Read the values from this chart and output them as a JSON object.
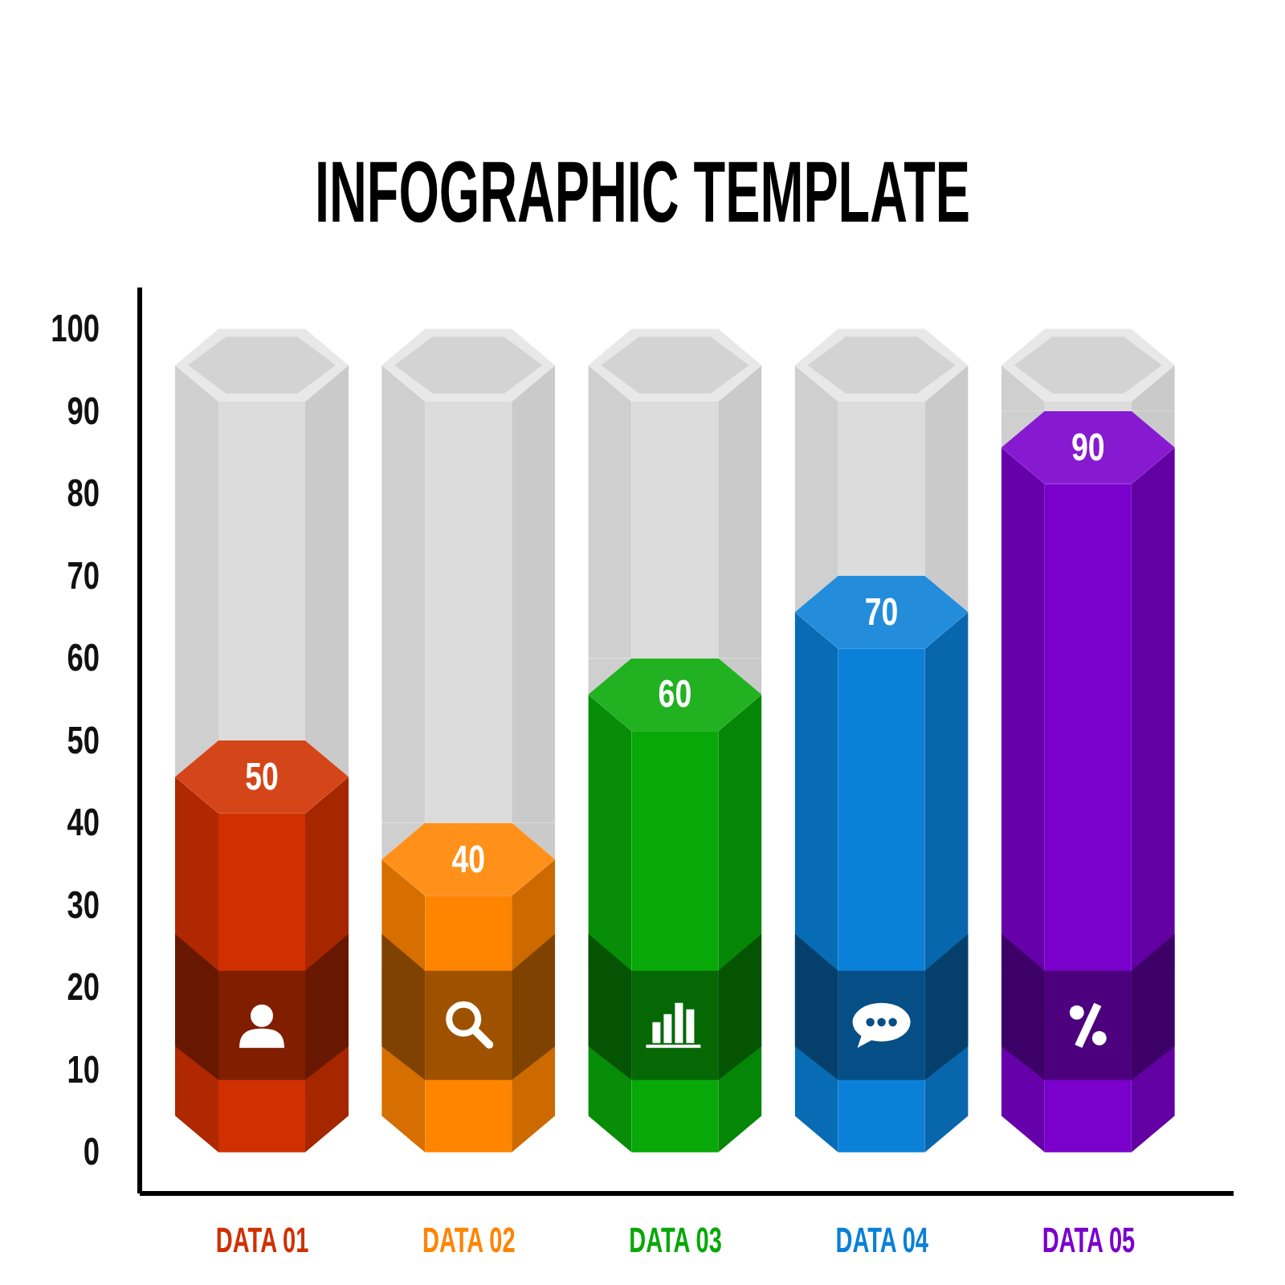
{
  "chart_data": {
    "type": "bar",
    "title": "INFOGRAPHIC TEMPLATE",
    "categories": [
      "DATA 01",
      "DATA 02",
      "DATA 03",
      "DATA 04",
      "DATA 05"
    ],
    "stacked": true,
    "ylim": [
      -5,
      105
    ],
    "yticks": [
      0,
      10,
      20,
      30,
      40,
      50,
      60,
      70,
      80,
      90,
      100
    ],
    "series": [
      {
        "values": [
          50,
          40,
          60,
          70,
          90
        ],
        "colors": [
          "#d03000",
          "#ff8400",
          "#08a808",
          "#0a80d8",
          "#7a00cc"
        ],
        "value_labels": [
          "50",
          "40",
          "60",
          "70",
          "90"
        ]
      },
      {
        "values": [
          50,
          60,
          40,
          30,
          10
        ],
        "color": "#dcdcdc"
      }
    ]
  }
}
